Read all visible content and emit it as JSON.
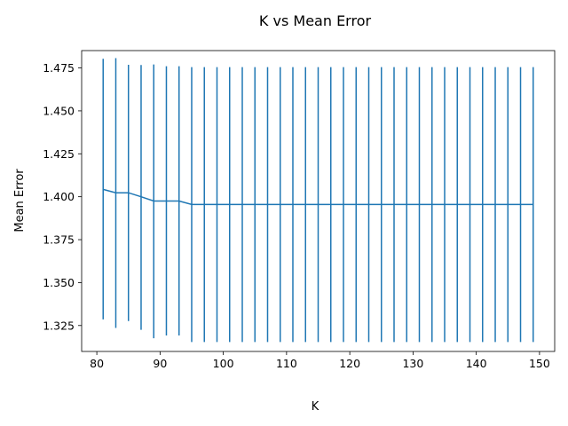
{
  "chart_data": {
    "type": "line",
    "title": "K vs Mean Error",
    "xlabel": "K",
    "ylabel": "Mean Error",
    "xlim": [
      77.6,
      152.4
    ],
    "ylim": [
      1.3099,
      1.4851
    ],
    "grid": false,
    "legend": "none",
    "x_ticks": [
      80,
      90,
      100,
      110,
      120,
      130,
      140,
      150
    ],
    "y_ticks": [
      1.325,
      1.35,
      1.375,
      1.4,
      1.425,
      1.45,
      1.475
    ],
    "x_tick_labels": [
      "80",
      "90",
      "100",
      "110",
      "120",
      "130",
      "140",
      "150"
    ],
    "y_tick_labels": [
      "1.325",
      "1.350",
      "1.375",
      "1.400",
      "1.425",
      "1.450",
      "1.475"
    ],
    "series": [
      {
        "color": "#1f77b4",
        "x": [
          81,
          83,
          85,
          87,
          89,
          91,
          93,
          95,
          97,
          99,
          101,
          103,
          105,
          107,
          109,
          111,
          113,
          115,
          117,
          119,
          121,
          123,
          125,
          127,
          129,
          131,
          133,
          135,
          137,
          139,
          141,
          143,
          145,
          147,
          149
        ],
        "y": [
          1.4043,
          1.4023,
          1.4023,
          1.4,
          1.3975,
          1.3975,
          1.3975,
          1.3955,
          1.3955,
          1.3955,
          1.3955,
          1.3955,
          1.3955,
          1.3955,
          1.3955,
          1.3955,
          1.3955,
          1.3955,
          1.3955,
          1.3955,
          1.3955,
          1.3955,
          1.3955,
          1.3955,
          1.3955,
          1.3955,
          1.3955,
          1.3955,
          1.3955,
          1.3955,
          1.3955,
          1.3955,
          1.3955,
          1.3955,
          1.3955
        ],
        "y_upper": [
          1.4803,
          1.4807,
          1.4768,
          1.4767,
          1.477,
          1.476,
          1.476,
          1.4755,
          1.4755,
          1.4755,
          1.4755,
          1.4755,
          1.4755,
          1.4755,
          1.4755,
          1.4755,
          1.4755,
          1.4755,
          1.4755,
          1.4755,
          1.4755,
          1.4755,
          1.4755,
          1.4755,
          1.4755,
          1.4755,
          1.4755,
          1.4755,
          1.4755,
          1.4755,
          1.4755,
          1.4755,
          1.4755,
          1.4755,
          1.4755
        ],
        "y_lower": [
          1.3286,
          1.3236,
          1.3276,
          1.3225,
          1.3176,
          1.3192,
          1.3192,
          1.3154,
          1.3154,
          1.3154,
          1.3154,
          1.3154,
          1.3154,
          1.3154,
          1.3154,
          1.3154,
          1.3154,
          1.3154,
          1.3154,
          1.3154,
          1.3154,
          1.3154,
          1.3154,
          1.3154,
          1.3154,
          1.3154,
          1.3154,
          1.3154,
          1.3154,
          1.3154,
          1.3154,
          1.3154,
          1.3154,
          1.3154,
          1.3154
        ]
      }
    ]
  }
}
